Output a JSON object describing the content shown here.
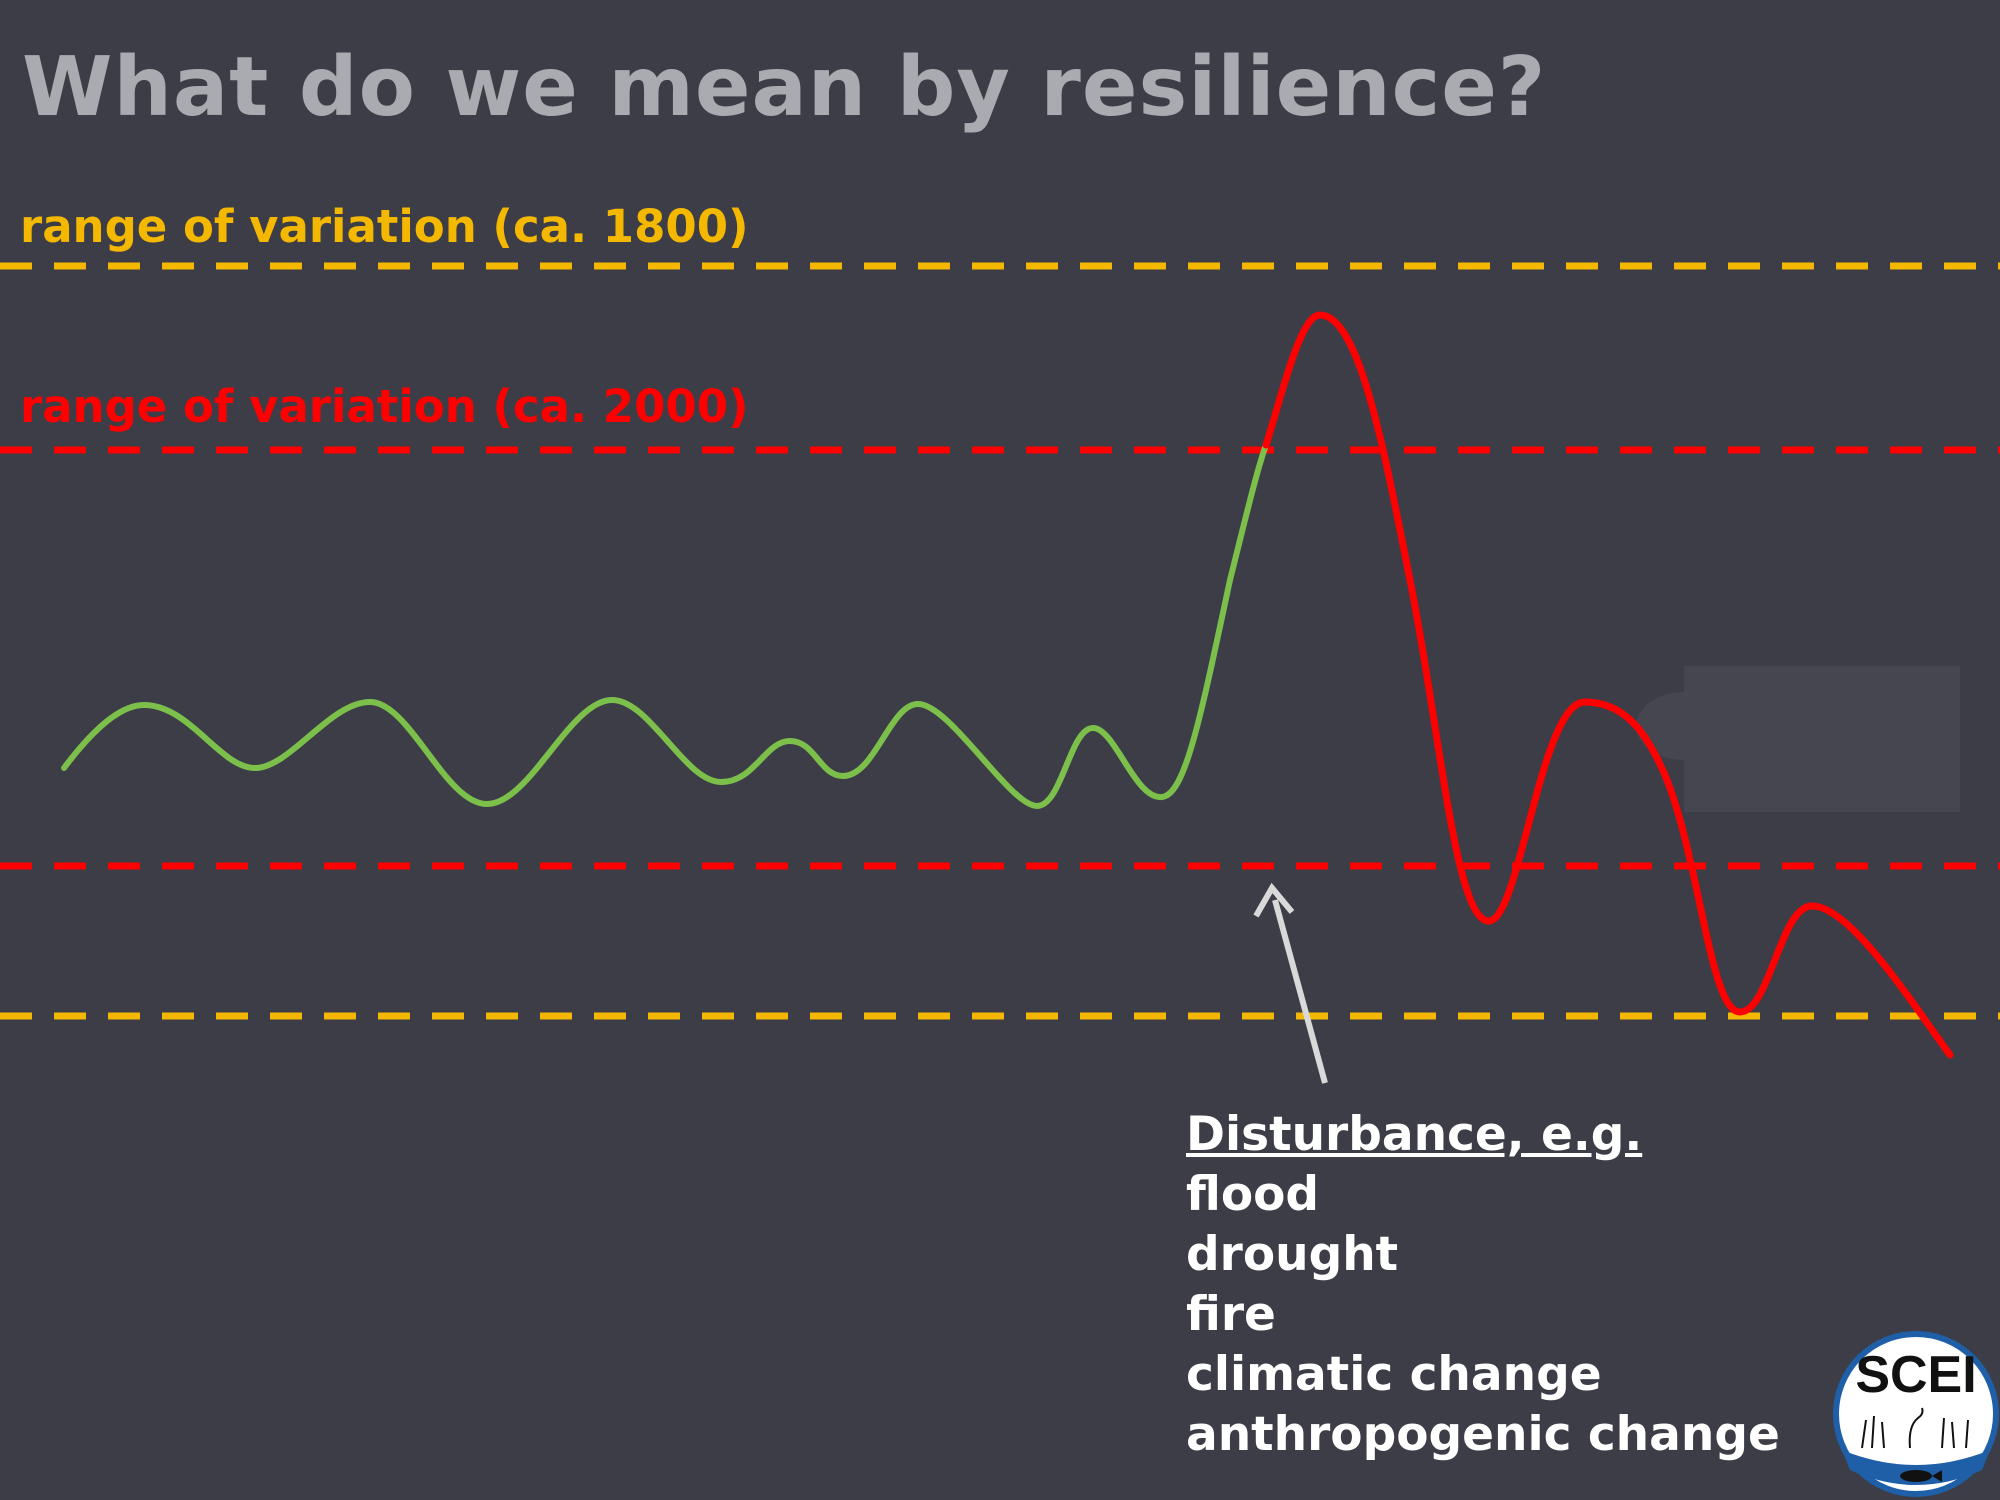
{
  "slide": {
    "title": "What do we mean by resilience?"
  },
  "ranges": {
    "historic_label": "range of variation (ca. 1800)",
    "current_label": "range of variation (ca. 2000)",
    "historic_color": "#f5b800",
    "current_color": "#ff0000"
  },
  "trajectory": {
    "within_range_color": "#7cc04b",
    "outside_range_color": "#ff0000"
  },
  "annotation": {
    "heading": "Disturbance, e.g.",
    "items": [
      "flood",
      "drought",
      "fire",
      "climatic change",
      "anthropogenic change"
    ],
    "arrow_color": "#d9d9d9"
  },
  "logo": {
    "text": "SCEI",
    "icon": "wetland-seal-logo"
  }
}
